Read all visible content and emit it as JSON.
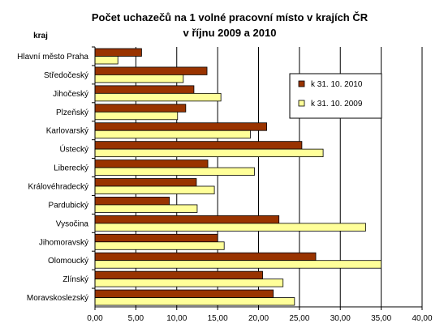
{
  "chart_data": {
    "type": "bar",
    "orientation": "horizontal",
    "title": "Počet uchazečů na 1 volné pracovní místo v krajích ČR",
    "subtitle": "v říjnu 2009 a 2010",
    "category_axis_label": "kraj",
    "categories": [
      "Hlavní město Praha",
      "Středočeský",
      "Jihočeský",
      "Plzeňský",
      "Karlovarský",
      "Ústecký",
      "Liberecký",
      "Královéhradecký",
      "Pardubický",
      "Vysočina",
      "Jihomoravský",
      "Olomoucký",
      "Zlínský",
      "Moravskoslezský"
    ],
    "series": [
      {
        "name": "k 31. 10. 2010",
        "color": "#993300",
        "values": [
          5.7,
          13.7,
          12.1,
          11.1,
          21.0,
          25.3,
          13.8,
          12.4,
          9.1,
          22.5,
          15.0,
          27.0,
          20.5,
          21.8
        ]
      },
      {
        "name": "k 31. 10. 2009",
        "color": "#FFFF99",
        "values": [
          2.8,
          10.8,
          15.4,
          10.1,
          19.0,
          27.9,
          19.5,
          14.6,
          12.5,
          33.1,
          15.8,
          35.0,
          23.0,
          24.4
        ]
      }
    ],
    "xlim": [
      0,
      40
    ],
    "x_ticks": [
      "0,00",
      "5,00",
      "10,00",
      "15,00",
      "20,00",
      "25,00",
      "30,00",
      "35,00",
      "40,00"
    ],
    "grid": "vertical",
    "legend_position": "top-right"
  }
}
